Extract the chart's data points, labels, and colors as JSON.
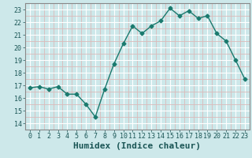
{
  "x": [
    0,
    1,
    2,
    3,
    4,
    5,
    6,
    7,
    8,
    9,
    10,
    11,
    12,
    13,
    14,
    15,
    16,
    17,
    18,
    19,
    20,
    21,
    22,
    23
  ],
  "y": [
    16.8,
    16.9,
    16.7,
    16.9,
    16.3,
    16.3,
    15.5,
    14.5,
    16.7,
    18.7,
    20.3,
    21.7,
    21.1,
    21.7,
    22.1,
    23.1,
    22.5,
    22.9,
    22.3,
    22.5,
    21.1,
    20.5,
    19.0,
    17.5
  ],
  "line_color": "#1a7a6e",
  "marker": "D",
  "marker_size": 2.5,
  "line_width": 1.0,
  "xlabel": "Humidex (Indice chaleur)",
  "xlabel_fontsize": 8,
  "xlabel_fontweight": "bold",
  "ylim": [
    14,
    23.5
  ],
  "yticks": [
    14,
    15,
    16,
    17,
    18,
    19,
    20,
    21,
    22,
    23
  ],
  "xticks": [
    0,
    1,
    2,
    3,
    4,
    5,
    6,
    7,
    8,
    9,
    10,
    11,
    12,
    13,
    14,
    15,
    16,
    17,
    18,
    19,
    20,
    21,
    22,
    23
  ],
  "bg_color": "#cde8ea",
  "grid_color_major": "#ffffff",
  "grid_color_minor": "#dbbaba",
  "tick_fontsize": 6
}
